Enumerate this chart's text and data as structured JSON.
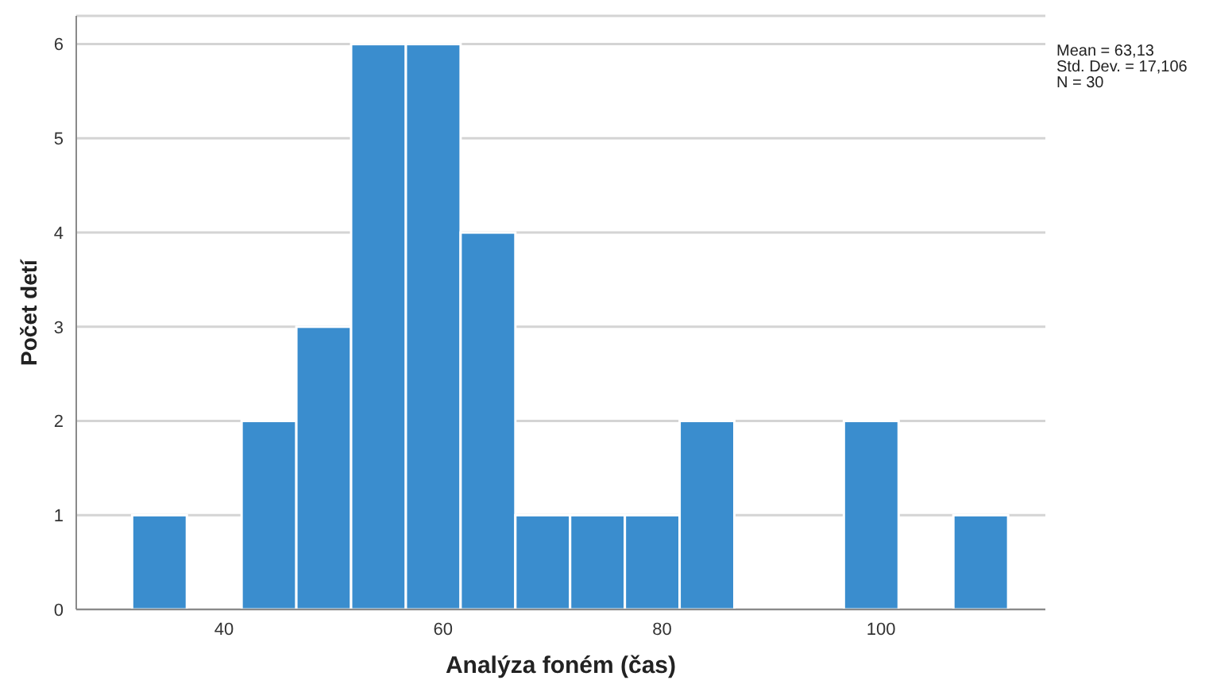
{
  "chart_data": {
    "type": "histogram",
    "xlabel": "Analýza foném (čas)",
    "ylabel": "Počet detí",
    "annotations": [
      "Mean = 63,13",
      "Std. Dev. = 17,106",
      "N = 30"
    ],
    "bins": [
      31.6,
      36.6,
      41.6,
      46.6,
      51.6,
      56.6,
      61.6,
      66.6,
      71.6,
      76.6,
      81.6,
      86.6,
      91.6,
      96.6,
      101.6,
      106.6,
      111.6
    ],
    "values": [
      1,
      0,
      2,
      3,
      6,
      6,
      4,
      1,
      1,
      1,
      2,
      0,
      0,
      2,
      0,
      1
    ],
    "color": "#3a8dce",
    "xlim": [
      26.5,
      115
    ],
    "xticks": [
      40,
      60,
      80,
      100
    ],
    "ylim": [
      0,
      6.3
    ],
    "yticks": [
      0,
      1,
      2,
      3,
      4,
      5,
      6
    ],
    "grid": "y"
  }
}
